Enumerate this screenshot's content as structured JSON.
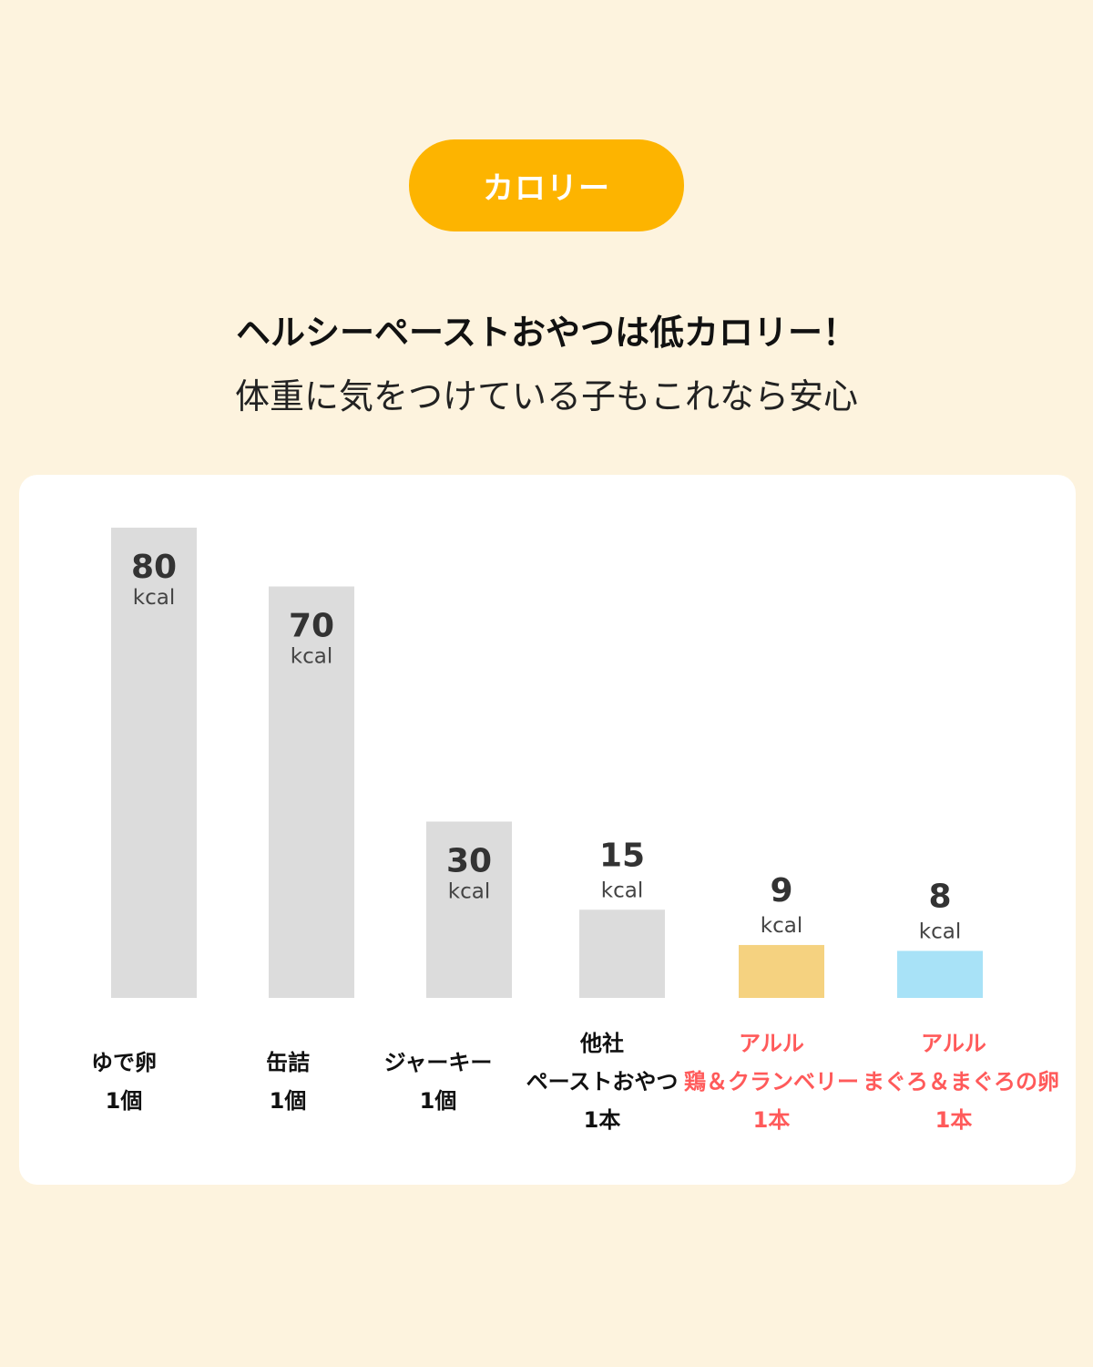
{
  "badge": {
    "label": "カロリー",
    "color": "#fdb400"
  },
  "headline": "ヘルシーペーストおやつは低カロリー！",
  "subline": "体重に気をつけている子もこれなら安心",
  "chart_data": {
    "type": "bar",
    "unit": "kcal",
    "ylim": [
      0,
      80
    ],
    "grid": false,
    "categories": [
      {
        "lines": [
          "ゆで卵",
          "1個"
        ],
        "highlight": false
      },
      {
        "lines": [
          "缶詰",
          "1個"
        ],
        "highlight": false
      },
      {
        "lines": [
          "ジャーキー",
          "1個"
        ],
        "highlight": false
      },
      {
        "lines": [
          "他社",
          "ペーストおやつ",
          "1本"
        ],
        "highlight": false
      },
      {
        "lines": [
          "アルル",
          "鶏＆クランベリー",
          "1本"
        ],
        "highlight": true
      },
      {
        "lines": [
          "アルル",
          "まぐろ＆まぐろの卵",
          "1本"
        ],
        "highlight": true
      }
    ],
    "values": [
      80,
      70,
      30,
      15,
      9,
      8
    ],
    "bar_colors": [
      "#dcdcdc",
      "#dcdcdc",
      "#dcdcdc",
      "#dcdcdc",
      "#f5d280",
      "#a8e2f7"
    ],
    "highlight_label_color": "#ff5a5a"
  }
}
